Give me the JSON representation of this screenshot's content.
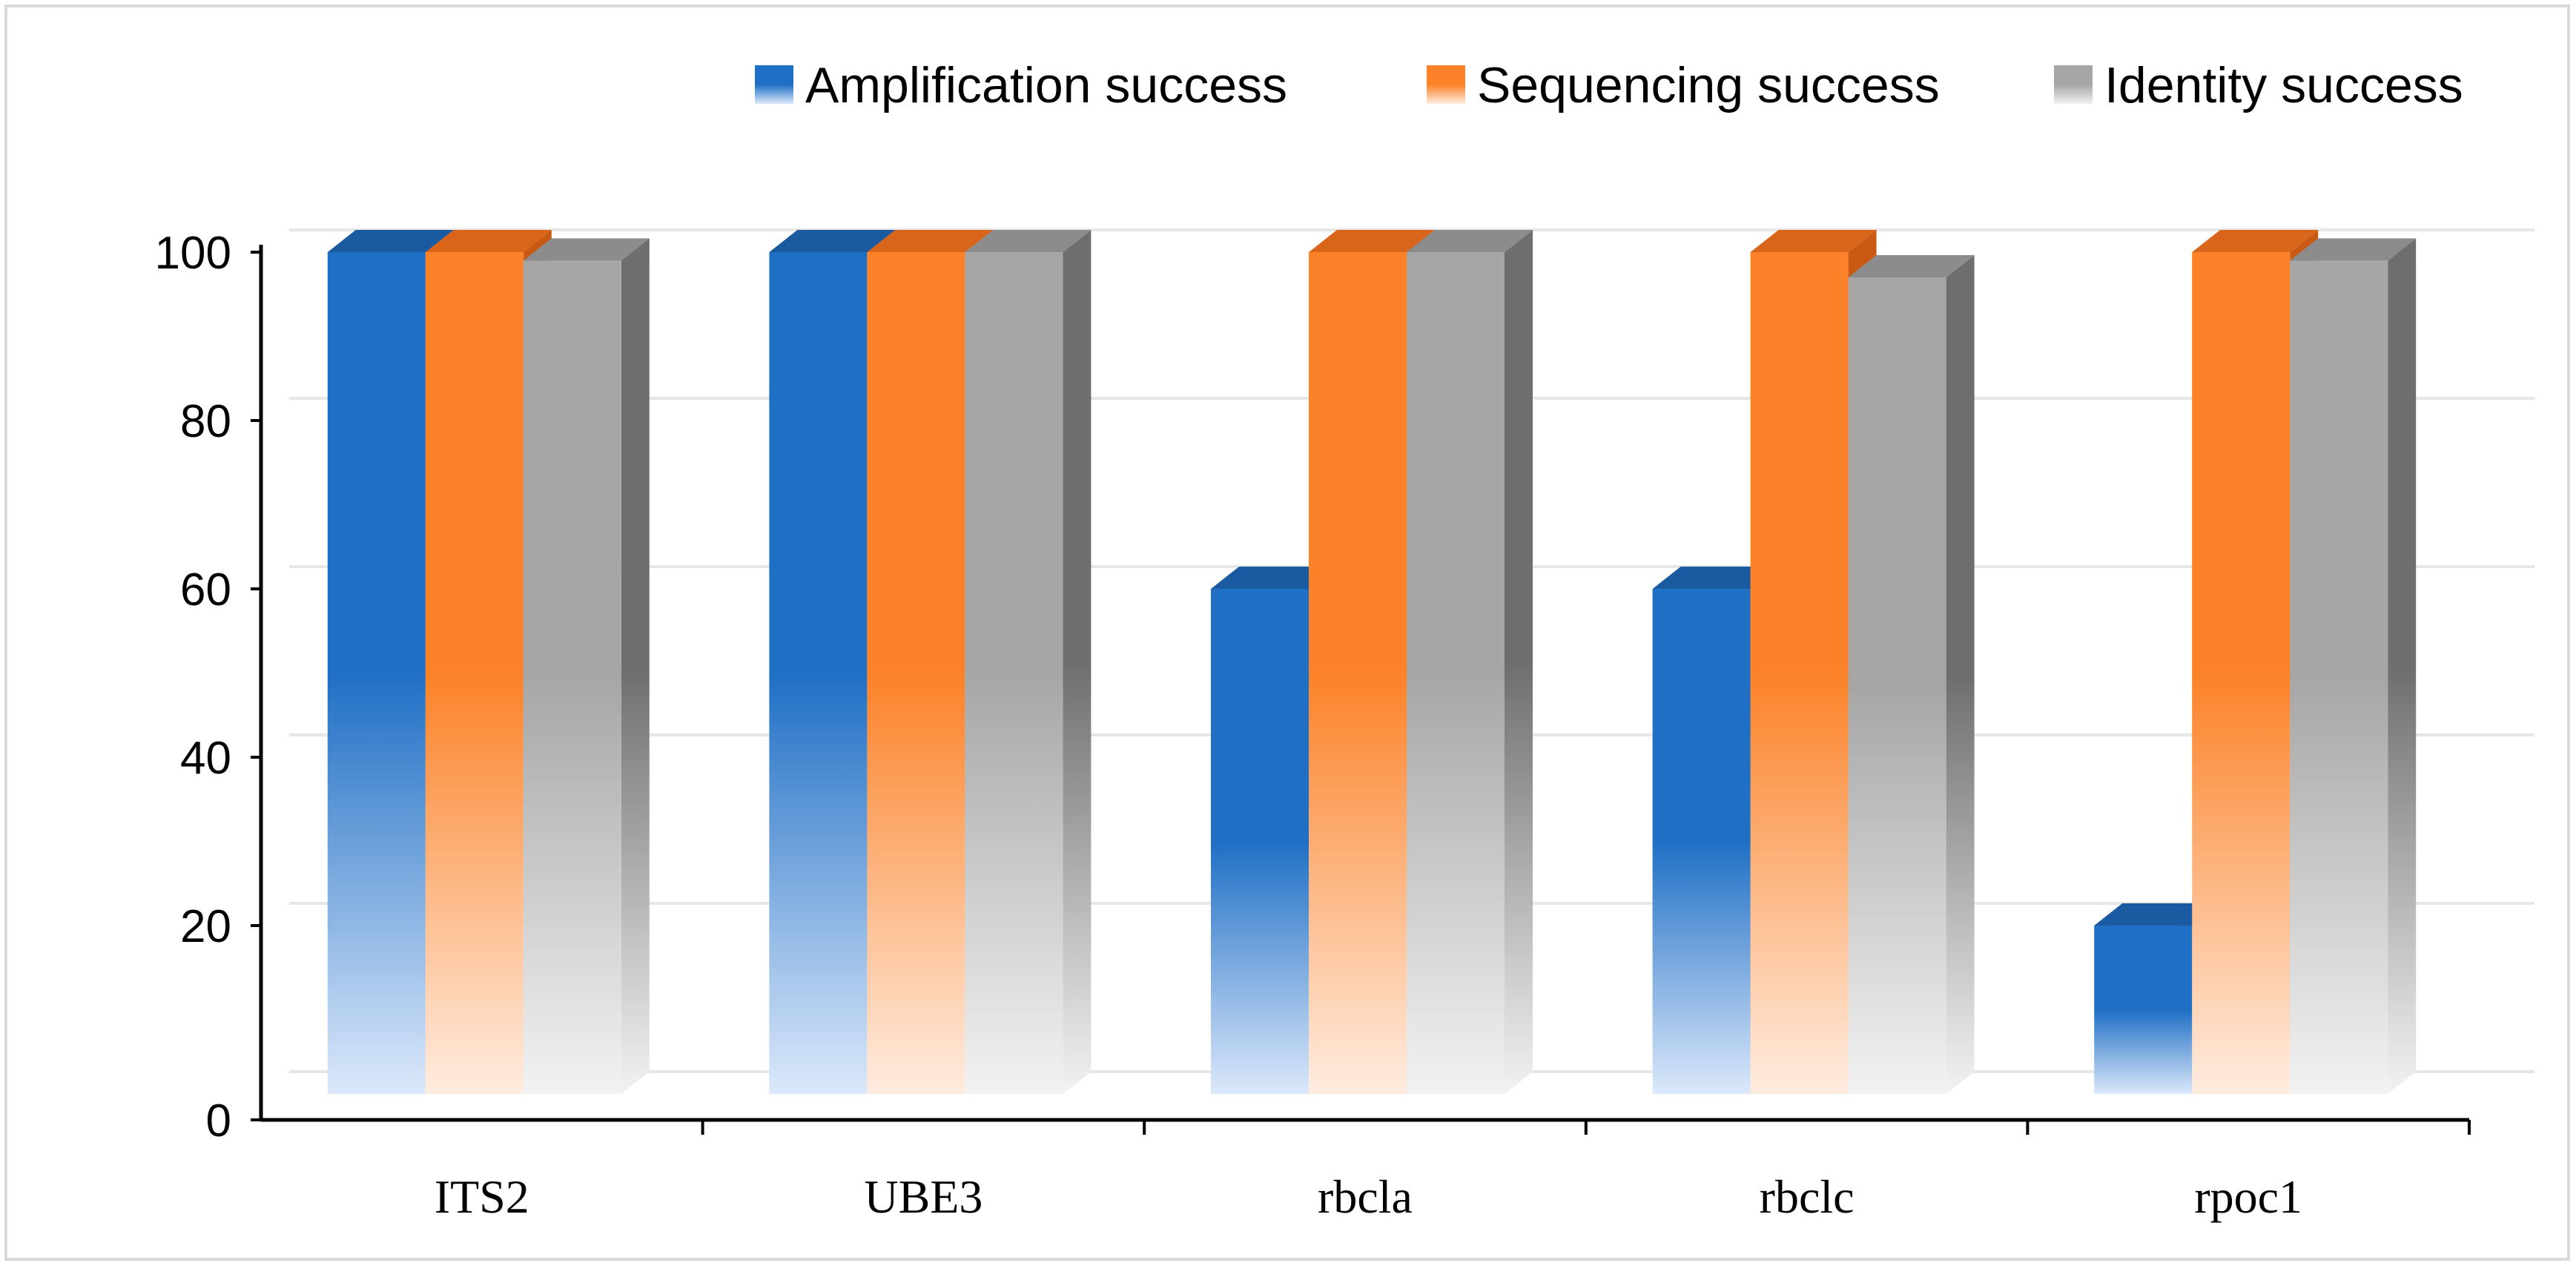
{
  "chart_data": {
    "type": "bar",
    "title": "",
    "xlabel": "",
    "ylabel": "",
    "categories": [
      "ITS2",
      "UBE3",
      "rbcla",
      "rbclc",
      "rpoc1"
    ],
    "series": [
      {
        "name": "Amplification success",
        "values": [
          100,
          100,
          60,
          60,
          20
        ],
        "color": "#1f6fc5",
        "top": "#195aa0",
        "side": "#154c88",
        "light": "#dbe8fa"
      },
      {
        "name": "Sequencing success",
        "values": [
          100,
          100,
          100,
          100,
          100
        ],
        "color": "#fb8228",
        "top": "#d8651a",
        "side": "#c85a14",
        "light": "#ffece0"
      },
      {
        "name": "Identity success",
        "values": [
          99,
          100,
          100,
          97,
          99
        ],
        "color": "#a6a6a6",
        "top": "#8c8c8c",
        "side": "#6e6e6e",
        "light": "#f2f2f2"
      }
    ],
    "ylim": [
      0,
      100
    ],
    "yticks": [
      0,
      20,
      40,
      60,
      80,
      100
    ],
    "grid": true,
    "legend": "top-right",
    "style": "3d-column"
  }
}
